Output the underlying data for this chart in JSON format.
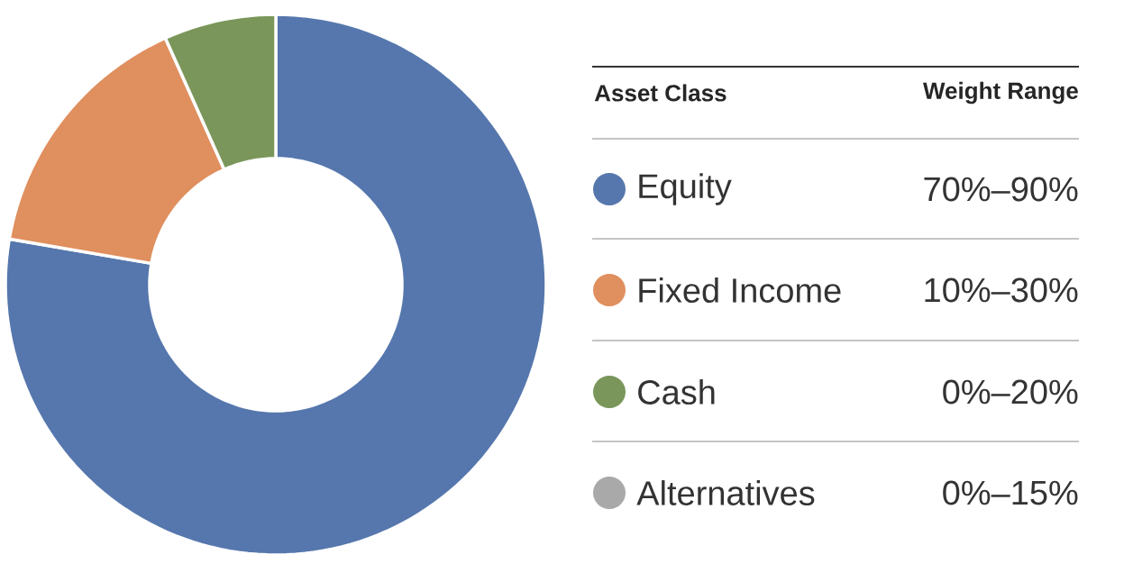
{
  "chart_data": {
    "type": "donut",
    "categories": [
      "Equity",
      "Fixed Income",
      "Cash",
      "Alternatives"
    ],
    "values": [
      77.7,
      15.6,
      6.7,
      0
    ],
    "colors": [
      "#5677ad",
      "#e08f5e",
      "#7a965a",
      "#a9a9a9"
    ],
    "legend": "right",
    "legend_title": "Asset Class",
    "annotations": [
      "Weight Range",
      "70%–90%",
      "10%–30%",
      "0%–20%",
      "0%–15%"
    ]
  }
}
